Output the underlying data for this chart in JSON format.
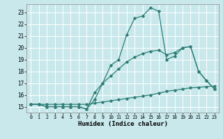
{
  "xlabel": "Humidex (Indice chaleur)",
  "bg_color": "#c8e8ec",
  "grid_color": "#ffffff",
  "line_color": "#2d7d74",
  "xlim": [
    -0.5,
    23.5
  ],
  "ylim": [
    14.5,
    23.7
  ],
  "xticks": [
    0,
    1,
    2,
    3,
    4,
    5,
    6,
    7,
    8,
    9,
    10,
    11,
    12,
    13,
    14,
    15,
    16,
    17,
    18,
    19,
    20,
    21,
    22,
    23
  ],
  "yticks": [
    15,
    16,
    17,
    18,
    19,
    20,
    21,
    22,
    23
  ],
  "line1_x": [
    0,
    1,
    2,
    3,
    4,
    5,
    6,
    7,
    8,
    9,
    10,
    11,
    12,
    13,
    14,
    15,
    16,
    17,
    18,
    19,
    20,
    21,
    22,
    23
  ],
  "line1_y": [
    15.2,
    15.2,
    15.0,
    15.0,
    15.0,
    15.0,
    15.0,
    14.8,
    15.6,
    17.0,
    18.5,
    19.0,
    21.1,
    22.5,
    22.7,
    23.4,
    23.1,
    19.0,
    19.3,
    20.0,
    20.1,
    18.0,
    17.2,
    16.5
  ],
  "line2_x": [
    0,
    1,
    2,
    3,
    4,
    5,
    6,
    7,
    8,
    9,
    10,
    11,
    12,
    13,
    14,
    15,
    16,
    17,
    18,
    19,
    20,
    21,
    22,
    23
  ],
  "line2_y": [
    15.2,
    15.2,
    15.0,
    15.0,
    15.0,
    15.0,
    15.0,
    14.8,
    16.2,
    17.0,
    17.6,
    18.2,
    18.8,
    19.2,
    19.5,
    19.7,
    19.8,
    19.4,
    19.6,
    20.0,
    20.1,
    18.0,
    17.2,
    16.5
  ],
  "line3_x": [
    0,
    1,
    2,
    3,
    4,
    5,
    6,
    7,
    8,
    9,
    10,
    11,
    12,
    13,
    14,
    15,
    16,
    17,
    18,
    19,
    20,
    21,
    22,
    23
  ],
  "line3_y": [
    15.2,
    15.2,
    15.2,
    15.2,
    15.2,
    15.2,
    15.2,
    15.2,
    15.3,
    15.4,
    15.5,
    15.6,
    15.7,
    15.8,
    15.9,
    16.0,
    16.15,
    16.3,
    16.4,
    16.5,
    16.6,
    16.65,
    16.7,
    16.75
  ]
}
